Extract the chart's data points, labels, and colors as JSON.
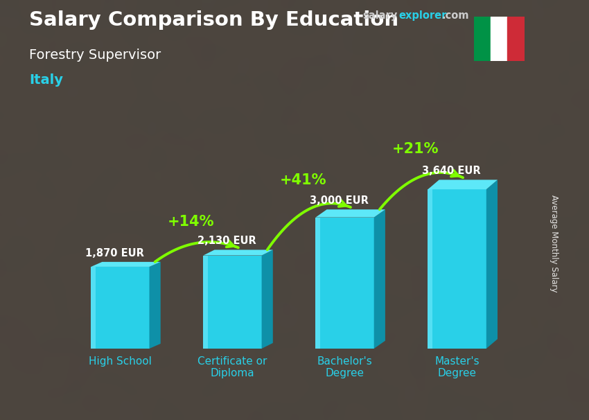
{
  "title": "Salary Comparison By Education",
  "subtitle": "Forestry Supervisor",
  "country": "Italy",
  "categories": [
    "High School",
    "Certificate or\nDiploma",
    "Bachelor's\nDegree",
    "Master's\nDegree"
  ],
  "values": [
    1870,
    2130,
    3000,
    3640
  ],
  "labels": [
    "1,870 EUR",
    "2,130 EUR",
    "3,000 EUR",
    "3,640 EUR"
  ],
  "pct_changes": [
    "+14%",
    "+41%",
    "+21%"
  ],
  "bar_front_color": "#29d0e8",
  "bar_left_color": "#1ab8d0",
  "bar_right_color": "#0e90a8",
  "bar_top_color": "#5de8f8",
  "bg_overlay_color": "#5a4a3a",
  "bg_overlay_alpha": 0.55,
  "title_color": "#ffffff",
  "subtitle_color": "#ffffff",
  "country_color": "#29d0e8",
  "label_color": "#ffffff",
  "pct_color": "#7fff00",
  "arrow_color": "#7fff00",
  "xtick_color": "#29d0e8",
  "ylabel": "Average Monthly Salary",
  "ylim": [
    0,
    4800
  ],
  "figsize": [
    8.5,
    6.06
  ],
  "dpi": 100,
  "italy_flag_colors": [
    "#009246",
    "#ffffff",
    "#ce2b37"
  ],
  "bar_width": 0.52,
  "bar_spacing": 1.0,
  "site_text_salary": "salary",
  "site_text_explorer": "explorer",
  "site_text_com": ".com",
  "site_color_salary": "#cccccc",
  "site_color_explorer": "#29d0e8",
  "site_color_com": "#cccccc"
}
